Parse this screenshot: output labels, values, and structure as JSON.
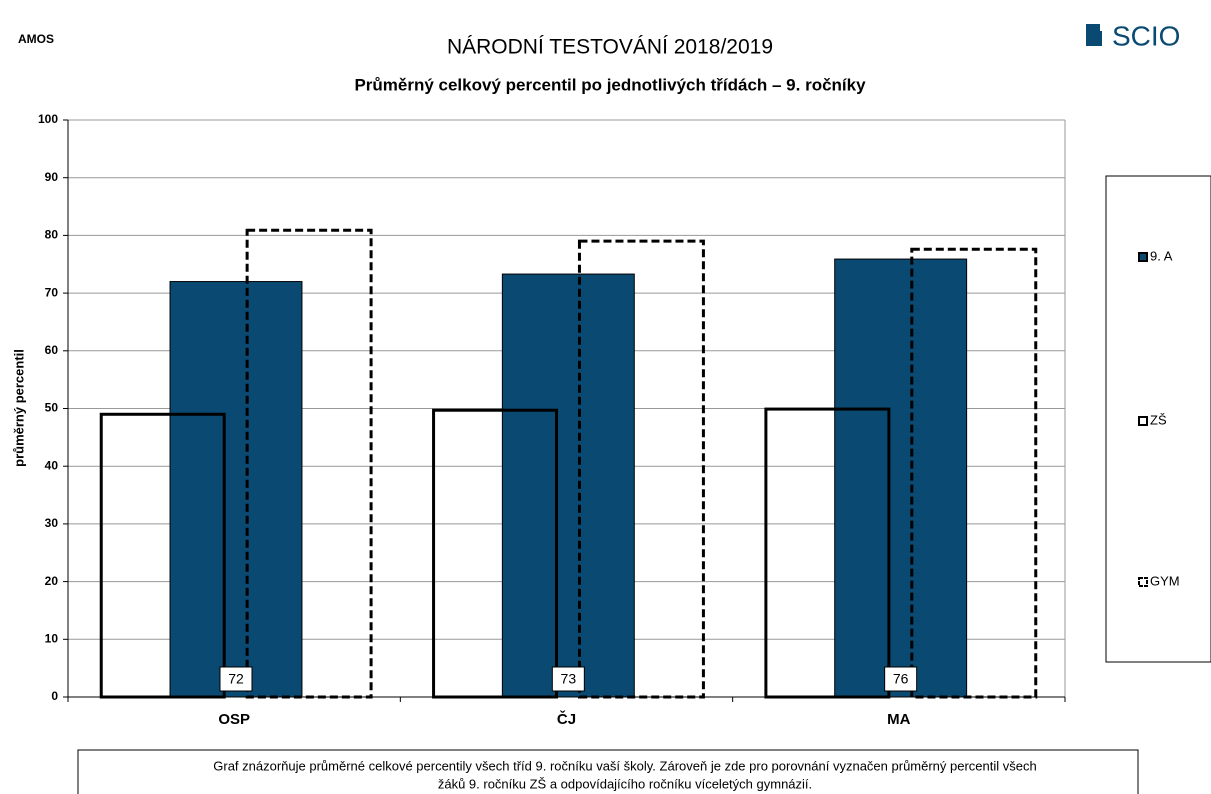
{
  "chart_data": {
    "type": "bar",
    "corner_label": "AMOS",
    "logo": "SCIO",
    "title": "NÁRODNÍ TESTOVÁNÍ 2018/2019",
    "subtitle": "Průměrný celkový percentil po jednotlivých třídách – 9. ročníky",
    "y_label": "průměrný percentil",
    "categories": [
      "OSP",
      "ČJ",
      "MA"
    ],
    "series": [
      {
        "name": "9. A",
        "color": "#0a4a72",
        "style": "filled",
        "values": [
          72,
          73.3,
          75.9
        ],
        "value_labels": [
          "72",
          "73",
          "76"
        ]
      },
      {
        "name": "ZŠ",
        "color": "#000000",
        "style": "solid",
        "values": [
          49,
          49.7,
          49.9
        ]
      },
      {
        "name": "GYM",
        "color": "#000000",
        "style": "dashed",
        "values": [
          80.9,
          79,
          77.6
        ]
      }
    ],
    "ylim": [
      0,
      100
    ],
    "yticks": [
      0,
      10,
      20,
      30,
      40,
      50,
      60,
      70,
      80,
      90,
      100
    ],
    "grid": true,
    "legend": "right",
    "note": [
      "Graf znázorňuje průměrné celkové percentily všech tříd 9. ročníku vaší školy. Zároveň je zde pro porovnání vyznačen průměrný percentil všech",
      "žáků  9. ročníku ZŠ a odpovídajícího ročníku víceletých gymnázií."
    ]
  }
}
